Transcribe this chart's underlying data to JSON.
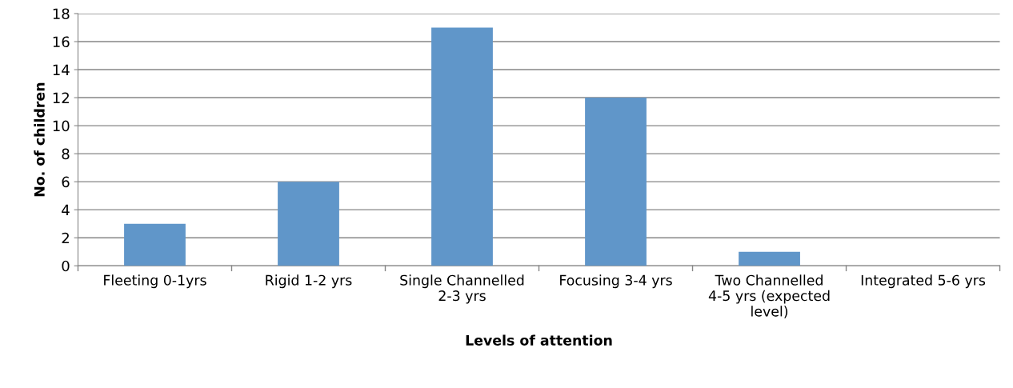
{
  "chart_data": {
    "type": "bar",
    "xlabel": "Levels of attention",
    "ylabel": "No. of children",
    "categories": [
      "Fleeting 0-1yrs",
      "Rigid 1-2 yrs",
      "Single Channelled\n2-3 yrs",
      "Focusing 3-4 yrs",
      "Two Channelled\n4-5 yrs (expected\nlevel)",
      "Integrated 5-6 yrs"
    ],
    "values": [
      3,
      6,
      17,
      12,
      1,
      0
    ],
    "color": "#6096c9",
    "ylim": [
      0,
      18
    ],
    "yticks": [
      0,
      2,
      4,
      6,
      8,
      10,
      12,
      14,
      16,
      18
    ],
    "grid": "y",
    "legend": false
  }
}
